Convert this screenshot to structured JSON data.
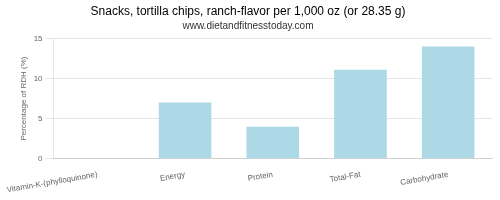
{
  "chart_data": {
    "type": "bar",
    "title": "Snacks, tortilla chips, ranch-flavor per 1,000 oz (or 28.35 g)",
    "subtitle": "www.dietandfitnesstoday.com",
    "categories": [
      "Vitamin-K-(phylloquinone)",
      "Energy",
      "Protein",
      "Total-Fat",
      "Carbohydrate"
    ],
    "values": [
      0,
      7.0,
      4.0,
      11.1,
      14.0
    ],
    "color": "#add8e6",
    "ylabel": "Percentage of RDH (%)",
    "ylim": [
      0,
      15
    ],
    "yticks": [
      0,
      5,
      10,
      15
    ],
    "grid": true
  }
}
